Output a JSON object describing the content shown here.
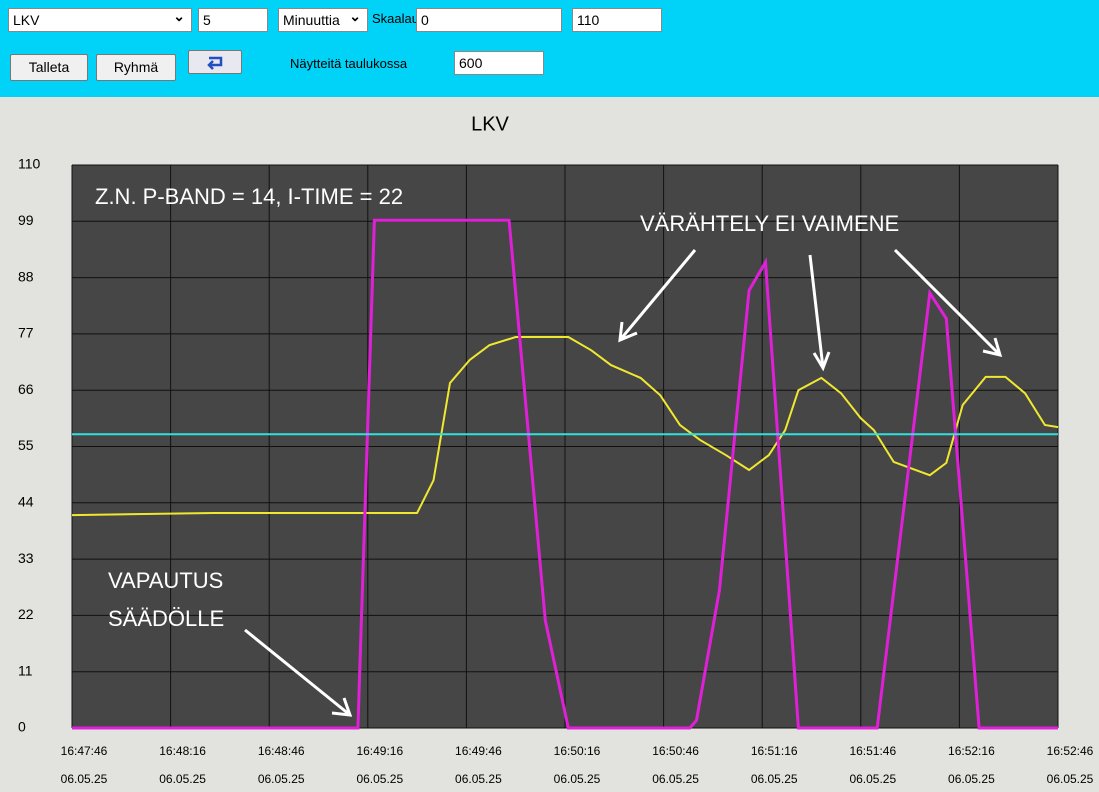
{
  "toolbar": {
    "measure_select": "LKV",
    "period_value": "5",
    "period_unit": "Minuuttia",
    "scale_label": "Skaalaus",
    "scale_min": "0",
    "scale_max": "110",
    "save_button": "Talleta",
    "group_button": "Ryhmä",
    "samples_label": "Näytteitä taulukossa",
    "samples_value": "600"
  },
  "chart_data": {
    "type": "line",
    "title": "LKV",
    "ylim": [
      0,
      110
    ],
    "yticks": [
      0,
      11,
      22,
      33,
      44,
      55,
      66,
      77,
      88,
      99,
      110
    ],
    "xlim": [
      "16:47:46",
      "16:52:46"
    ],
    "xticks": [
      {
        "time": "16:47:46",
        "date": "06.05.25"
      },
      {
        "time": "16:48:16",
        "date": "06.05.25"
      },
      {
        "time": "16:48:46",
        "date": "06.05.25"
      },
      {
        "time": "16:49:16",
        "date": "06.05.25"
      },
      {
        "time": "16:49:46",
        "date": "06.05.25"
      },
      {
        "time": "16:50:16",
        "date": "06.05.25"
      },
      {
        "time": "16:50:46",
        "date": "06.05.25"
      },
      {
        "time": "16:51:16",
        "date": "06.05.25"
      },
      {
        "time": "16:51:46",
        "date": "06.05.25"
      },
      {
        "time": "16:52:16",
        "date": "06.05.25"
      },
      {
        "time": "16:52:46",
        "date": "06.05.25"
      }
    ],
    "grid": true,
    "annotations": [
      "Z.N. P-BAND = 14, I-TIME = 22",
      "VÄRÄHTELY EI VAIMENE",
      "VAPAUTUS",
      "SÄÄDÖLLE"
    ],
    "series": [
      {
        "color": "#f0e830",
        "x": [
          "16:47:46",
          "16:48:29",
          "16:49:31",
          "16:49:36",
          "16:49:41",
          "16:49:47",
          "16:49:53",
          "16:50:01",
          "16:50:17",
          "16:50:24",
          "16:50:30",
          "16:50:39",
          "16:50:45",
          "16:50:51",
          "16:50:57",
          "16:51:05",
          "16:51:12",
          "16:51:18",
          "16:51:23",
          "16:51:27",
          "16:51:34",
          "16:51:40",
          "16:51:46",
          "16:51:50",
          "16:51:56",
          "16:52:07",
          "16:52:12",
          "16:52:17",
          "16:52:24",
          "16:52:30",
          "16:52:36",
          "16:52:42",
          "16:52:46"
        ],
        "values": [
          41.6,
          42,
          42,
          48.4,
          67.4,
          71.9,
          74.8,
          76.4,
          76.4,
          73.8,
          70.9,
          68.4,
          65,
          59.2,
          56.3,
          53.3,
          50.4,
          53.3,
          58.2,
          66,
          68.4,
          65.4,
          60.5,
          58.2,
          52,
          49.4,
          51.8,
          63.1,
          68.6,
          68.6,
          65.4,
          59.2,
          58.8
        ]
      },
      {
        "color": "#e020d8",
        "x": [
          "16:47:46",
          "16:49:13",
          "16:49:18",
          "16:49:59",
          "16:50:10",
          "16:50:17",
          "16:50:54",
          "16:50:56",
          "16:51:03",
          "16:51:12",
          "16:51:17",
          "16:51:27",
          "16:51:51",
          "16:52:07",
          "16:52:12",
          "16:52:22",
          "16:52:46"
        ],
        "values": [
          0,
          0,
          99.2,
          99.2,
          21,
          0,
          0,
          1.5,
          27,
          85.5,
          91,
          0,
          0,
          85,
          80,
          0,
          0
        ]
      },
      {
        "color": "#30e0e0",
        "x": [
          "16:47:46",
          "16:52:46"
        ],
        "values": [
          57.4,
          57.4
        ]
      }
    ]
  }
}
